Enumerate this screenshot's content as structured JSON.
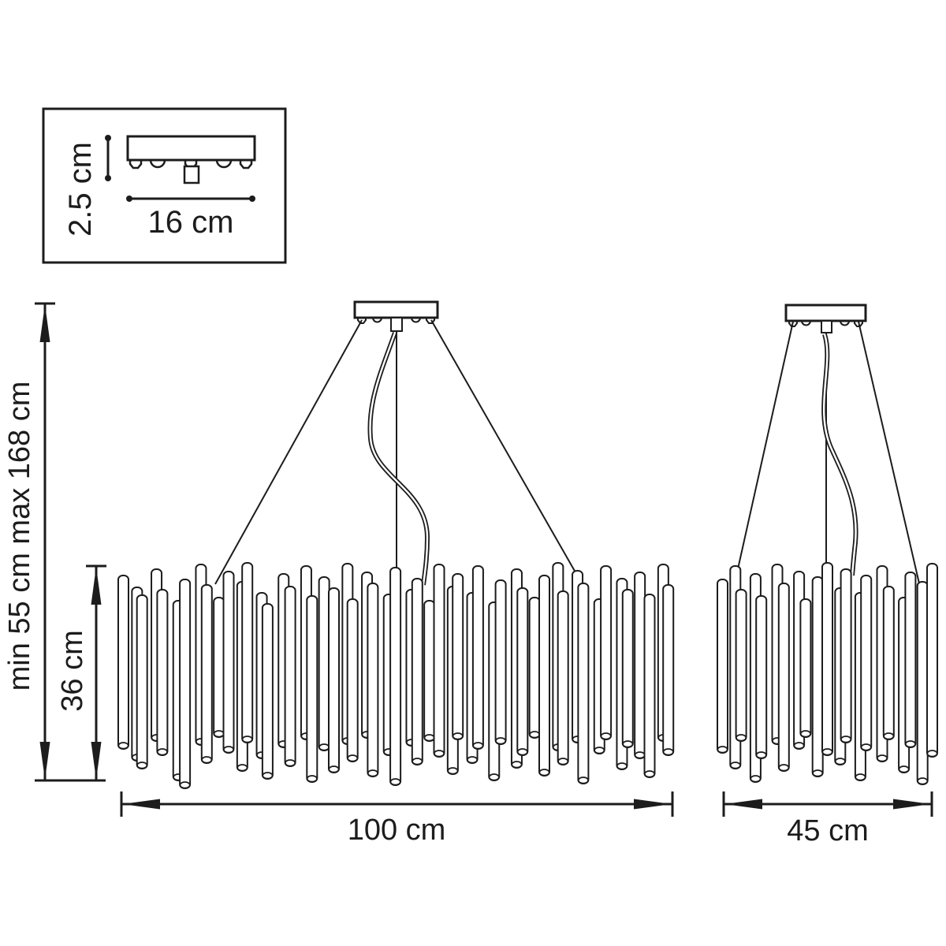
{
  "page": {
    "background": "#ffffff",
    "line_color": "#1c1c1c"
  },
  "inset": {
    "height_label": "2.5 cm",
    "width_label": "16 cm"
  },
  "left_dimensions": {
    "overall_label": "min 55 cm max 168 cm",
    "body_label": "36 cm"
  },
  "main_fixture": {
    "width_label": "100 cm",
    "tubes": [
      [
        0,
        730,
        950
      ],
      [
        4,
        745,
        965
      ],
      [
        -3,
        755,
        975
      ],
      [
        2,
        722,
        940
      ],
      [
        -4,
        748,
        958
      ],
      [
        3,
        762,
        990
      ],
      [
        -2,
        735,
        1000
      ],
      [
        5,
        716,
        945
      ],
      [
        -1,
        742,
        968
      ],
      [
        1,
        758,
        935
      ],
      [
        0,
        725,
        955
      ],
      [
        4,
        738,
        978
      ],
      [
        -3,
        714,
        942
      ],
      [
        2,
        752,
        962
      ],
      [
        -4,
        766,
        988
      ],
      [
        3,
        728,
        948
      ],
      [
        -2,
        744,
        972
      ],
      [
        5,
        718,
        938
      ],
      [
        -1,
        756,
        992
      ],
      [
        1,
        732,
        952
      ],
      [
        0,
        746,
        980
      ],
      [
        4,
        715,
        944
      ],
      [
        -3,
        760,
        966
      ],
      [
        2,
        726,
        936
      ],
      [
        -4,
        740,
        985
      ],
      [
        3,
        754,
        958
      ],
      [
        -2,
        720,
        996
      ],
      [
        5,
        748,
        946
      ],
      [
        -1,
        734,
        970
      ],
      [
        1,
        762,
        940
      ],
      [
        0,
        716,
        960
      ],
      [
        4,
        744,
        982
      ],
      [
        -3,
        728,
        938
      ],
      [
        2,
        752,
        968
      ],
      [
        -4,
        718,
        950
      ],
      [
        3,
        764,
        990
      ],
      [
        -2,
        736,
        944
      ],
      [
        5,
        722,
        974
      ],
      [
        -1,
        746,
        958
      ],
      [
        1,
        758,
        936
      ],
      [
        0,
        730,
        984
      ],
      [
        4,
        714,
        952
      ],
      [
        -3,
        750,
        970
      ],
      [
        2,
        724,
        942
      ],
      [
        -4,
        740,
        994
      ],
      [
        3,
        760,
        956
      ],
      [
        -2,
        718,
        938
      ],
      [
        5,
        734,
        976
      ],
      [
        -1,
        748,
        948
      ],
      [
        1,
        726,
        962
      ],
      [
        0,
        754,
        986
      ],
      [
        4,
        716,
        940
      ],
      [
        -3,
        742,
        958
      ]
    ]
  },
  "small_fixture": {
    "width_label": "45 cm",
    "tubes": [
      [
        0,
        735,
        955
      ],
      [
        3,
        718,
        975
      ],
      [
        -3,
        748,
        940
      ],
      [
        2,
        728,
        992
      ],
      [
        -4,
        756,
        962
      ],
      [
        3,
        716,
        944
      ],
      [
        -2,
        740,
        978
      ],
      [
        4,
        725,
        950
      ],
      [
        -1,
        760,
        935
      ],
      [
        1,
        732,
        985
      ],
      [
        0,
        714,
        958
      ],
      [
        3,
        746,
        970
      ],
      [
        -3,
        722,
        942
      ],
      [
        2,
        752,
        990
      ],
      [
        -4,
        730,
        952
      ],
      [
        3,
        718,
        966
      ],
      [
        -2,
        744,
        938
      ],
      [
        4,
        758,
        980
      ],
      [
        -1,
        726,
        948
      ],
      [
        1,
        738,
        995
      ],
      [
        0,
        715,
        960
      ]
    ]
  }
}
